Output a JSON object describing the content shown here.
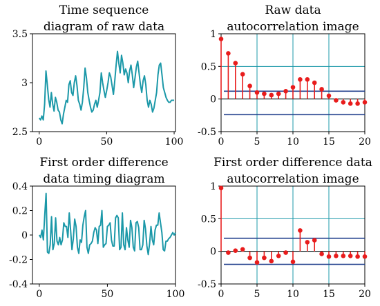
{
  "chart_data": [
    {
      "type": "line",
      "title": [
        "Time sequence",
        "diagram of raw data"
      ],
      "xlim": [
        -5,
        101
      ],
      "ylim": [
        2.5,
        3.5
      ],
      "xticks": [
        0,
        50,
        100
      ],
      "yticks": [
        2.5,
        3,
        3.5
      ],
      "ytick_labels": [
        "2.5",
        "3",
        "3.5"
      ],
      "grid": false,
      "color": "#1B98A8",
      "series": [
        {
          "values": [
            2.64,
            2.62,
            2.66,
            2.62,
            2.78,
            3.12,
            2.98,
            2.83,
            2.75,
            2.9,
            2.78,
            2.71,
            2.85,
            2.8,
            2.72,
            2.7,
            2.62,
            2.58,
            2.68,
            2.75,
            2.82,
            2.8,
            2.98,
            3.02,
            2.9,
            2.87,
            3.0,
            3.07,
            2.97,
            2.82,
            2.78,
            2.72,
            2.8,
            2.95,
            3.15,
            3.05,
            2.9,
            2.82,
            2.75,
            2.7,
            2.72,
            2.78,
            2.82,
            2.75,
            2.82,
            2.9,
            3.1,
            3.0,
            2.92,
            2.85,
            2.92,
            3.0,
            3.1,
            3.06,
            2.97,
            2.88,
            3.02,
            3.18,
            3.32,
            3.2,
            3.1,
            3.28,
            3.2,
            3.08,
            3.14,
            3.1,
            3.0,
            3.12,
            3.18,
            3.08,
            2.95,
            3.05,
            3.16,
            3.22,
            3.1,
            2.98,
            2.9,
            3.02,
            3.07,
            2.98,
            2.82,
            2.75,
            2.82,
            2.78,
            2.7,
            2.74,
            2.82,
            2.9,
            3.08,
            3.18,
            3.2,
            3.08,
            2.95,
            2.9,
            2.85,
            2.82,
            2.8,
            2.8,
            2.82,
            2.82,
            2.82
          ]
        }
      ]
    },
    {
      "type": "stem",
      "title": [
        "Raw data",
        "autocorrelation image"
      ],
      "xlim": [
        0,
        20
      ],
      "ylim": [
        -0.5,
        1
      ],
      "xticks": [
        0,
        5,
        10,
        15,
        20
      ],
      "yticks": [
        -0.5,
        0,
        0.5,
        1
      ],
      "ytick_labels": [
        "-0.5",
        "0",
        "0.5",
        "1"
      ],
      "grid": true,
      "zero_line": true,
      "confidence_bounds": [
        0.12,
        -0.24
      ],
      "colors": {
        "stem": "#E81C1C",
        "grid": "#1B98A8",
        "bounds": "#1F3E8C"
      },
      "x": [
        0,
        1,
        2,
        3,
        4,
        5,
        6,
        7,
        8,
        9,
        10,
        11,
        12,
        13,
        14,
        15,
        16,
        17,
        18,
        19,
        20
      ],
      "values": [
        0.92,
        0.7,
        0.55,
        0.38,
        0.2,
        0.1,
        0.08,
        0.06,
        0.08,
        0.12,
        0.18,
        0.3,
        0.3,
        0.25,
        0.15,
        0.05,
        -0.02,
        -0.05,
        -0.07,
        -0.07,
        -0.05
      ]
    },
    {
      "type": "line",
      "title": [
        "First order difference",
        "data timing diagram"
      ],
      "xlim": [
        -5,
        100
      ],
      "ylim": [
        -0.4,
        0.4
      ],
      "xticks": [
        0,
        50,
        100
      ],
      "yticks": [
        -0.4,
        -0.2,
        0,
        0.2,
        0.4
      ],
      "ytick_labels": [
        "-0.4",
        "-0.2",
        "0",
        "0.2",
        "0.4"
      ],
      "grid": false,
      "color": "#1B98A8",
      "series": [
        {
          "values": [
            0.0,
            -0.02,
            0.04,
            -0.04,
            0.16,
            0.34,
            -0.14,
            -0.15,
            -0.08,
            0.15,
            -0.12,
            -0.07,
            0.14,
            -0.05,
            -0.08,
            -0.02,
            -0.08,
            -0.04,
            0.1,
            0.07,
            0.07,
            -0.02,
            0.18,
            0.04,
            -0.12,
            -0.03,
            0.13,
            0.07,
            -0.1,
            -0.15,
            -0.04,
            -0.06,
            0.08,
            0.15,
            0.2,
            -0.1,
            -0.15,
            -0.08,
            -0.07,
            -0.05,
            0.02,
            0.06,
            0.04,
            -0.07,
            0.07,
            0.08,
            0.2,
            -0.1,
            -0.08,
            -0.07,
            0.07,
            0.08,
            0.1,
            -0.04,
            -0.09,
            -0.09,
            0.14,
            0.16,
            0.14,
            -0.12,
            -0.1,
            0.18,
            -0.08,
            -0.12,
            0.06,
            -0.04,
            -0.1,
            0.12,
            0.06,
            -0.1,
            -0.13,
            0.1,
            0.11,
            0.06,
            -0.12,
            -0.12,
            -0.08,
            0.12,
            0.05,
            -0.09,
            -0.16,
            -0.07,
            0.07,
            -0.04,
            -0.08,
            0.04,
            0.08,
            0.08,
            0.18,
            0.1,
            0.02,
            -0.12,
            -0.13,
            -0.05,
            -0.05,
            -0.03,
            -0.02,
            0.0,
            0.02,
            0.0,
            0.02
          ]
        }
      ]
    },
    {
      "type": "stem",
      "title": [
        "First order difference data",
        "autocorrelation image"
      ],
      "xlim": [
        0,
        20
      ],
      "ylim": [
        -0.5,
        1
      ],
      "xticks": [
        0,
        5,
        10,
        15,
        20
      ],
      "yticks": [
        -0.5,
        0,
        0.5,
        1
      ],
      "ytick_labels": [
        "-0.5",
        "0",
        "0.5",
        "1"
      ],
      "grid": true,
      "zero_line": true,
      "confidence_bounds": [
        0.2,
        -0.2
      ],
      "colors": {
        "stem": "#E81C1C",
        "grid": "#1B98A8",
        "bounds": "#1F3E8C"
      },
      "x": [
        0,
        1,
        2,
        3,
        4,
        5,
        6,
        7,
        8,
        9,
        10,
        11,
        12,
        13,
        14,
        15,
        16,
        17,
        18,
        19,
        20
      ],
      "values": [
        0.97,
        -0.02,
        0.01,
        0.03,
        -0.1,
        -0.17,
        -0.1,
        -0.15,
        -0.07,
        -0.02,
        -0.16,
        0.32,
        0.14,
        0.17,
        -0.04,
        -0.08,
        -0.07,
        -0.07,
        -0.07,
        -0.08,
        -0.08
      ]
    }
  ]
}
